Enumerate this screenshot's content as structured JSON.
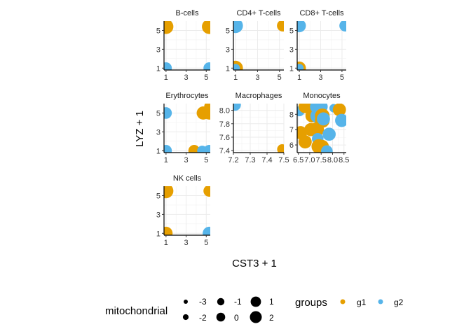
{
  "chart_data": {
    "type": "scatter",
    "xlabel": "CST3 + 1",
    "ylabel": "LYZ + 1",
    "grid": true,
    "colors": {
      "g1": "#E69F00",
      "g2": "#56B4E9"
    },
    "size_legend": {
      "title": "mitochondrial",
      "entries": [
        {
          "label": "-3",
          "value": -3
        },
        {
          "label": "-2",
          "value": -2
        },
        {
          "label": "-1",
          "value": -1
        },
        {
          "label": "0",
          "value": 0
        },
        {
          "label": "1",
          "value": 1
        },
        {
          "label": "2",
          "value": 2
        }
      ]
    },
    "color_legend": {
      "title": "groups",
      "entries": [
        {
          "label": "g1",
          "group": "g1"
        },
        {
          "label": "g2",
          "group": "g2"
        }
      ]
    },
    "panels": [
      {
        "title": "B-cells",
        "xlim": [
          0.8,
          5.4
        ],
        "ylim": [
          0.8,
          6.0
        ],
        "xticks": [
          {
            "v": 1,
            "l": "1"
          },
          {
            "v": 3,
            "l": "3"
          },
          {
            "v": 5,
            "l": "5"
          }
        ],
        "yticks": [
          {
            "v": 1,
            "l": "1"
          },
          {
            "v": 3,
            "l": "3"
          },
          {
            "v": 5,
            "l": "5"
          }
        ],
        "points": [
          {
            "x": 1,
            "y": 5.7,
            "group": "g2",
            "size": 0
          },
          {
            "x": 1,
            "y": 5.4,
            "group": "g1",
            "size": 2
          },
          {
            "x": 5.3,
            "y": 5.4,
            "group": "g1",
            "size": 2
          },
          {
            "x": 1,
            "y": 1,
            "group": "g2",
            "size": 0
          },
          {
            "x": 5.3,
            "y": 1,
            "group": "g2",
            "size": 0
          }
        ]
      },
      {
        "title": "CD4+ T-cells",
        "xlim": [
          0.8,
          5.4
        ],
        "ylim": [
          0.8,
          6.0
        ],
        "xticks": [
          {
            "v": 1,
            "l": "1"
          },
          {
            "v": 3,
            "l": "3"
          },
          {
            "v": 5,
            "l": "5"
          }
        ],
        "yticks": [
          {
            "v": 1,
            "l": "1"
          },
          {
            "v": 3,
            "l": "3"
          },
          {
            "v": 5,
            "l": "5"
          }
        ],
        "points": [
          {
            "x": 1,
            "y": 5.5,
            "group": "g2",
            "size": 2
          },
          {
            "x": 5.3,
            "y": 5.5,
            "group": "g1",
            "size": 0
          },
          {
            "x": 1,
            "y": 1,
            "group": "g1",
            "size": 2
          },
          {
            "x": 1,
            "y": 1,
            "group": "g2",
            "size": -2
          }
        ]
      },
      {
        "title": "CD8+ T-cells",
        "xlim": [
          0.8,
          5.4
        ],
        "ylim": [
          0.8,
          6.0
        ],
        "xticks": [
          {
            "v": 1,
            "l": "1"
          },
          {
            "v": 3,
            "l": "3"
          },
          {
            "v": 5,
            "l": "5"
          }
        ],
        "yticks": [
          {
            "v": 1,
            "l": "1"
          },
          {
            "v": 3,
            "l": "3"
          },
          {
            "v": 5,
            "l": "5"
          }
        ],
        "points": [
          {
            "x": 1,
            "y": 5.5,
            "group": "g2",
            "size": 1
          },
          {
            "x": 5.3,
            "y": 5.5,
            "group": "g2",
            "size": 0
          },
          {
            "x": 1,
            "y": 1,
            "group": "g1",
            "size": 1
          },
          {
            "x": 1,
            "y": 1,
            "group": "g2",
            "size": -2
          }
        ]
      },
      {
        "title": "Erythrocytes",
        "xlim": [
          0.8,
          5.4
        ],
        "ylim": [
          0.8,
          6.0
        ],
        "xticks": [
          {
            "v": 1,
            "l": "1"
          },
          {
            "v": 3,
            "l": "3"
          },
          {
            "v": 5,
            "l": "5"
          }
        ],
        "yticks": [
          {
            "v": 1,
            "l": "1"
          },
          {
            "v": 3,
            "l": "3"
          },
          {
            "v": 5,
            "l": "5"
          }
        ],
        "points": [
          {
            "x": 1,
            "y": 5,
            "group": "g2",
            "size": 0
          },
          {
            "x": 5.3,
            "y": 5.7,
            "group": "g1",
            "size": -1
          },
          {
            "x": 4.7,
            "y": 5,
            "group": "g1",
            "size": 1
          },
          {
            "x": 5.3,
            "y": 5,
            "group": "g1",
            "size": 1
          },
          {
            "x": 1,
            "y": 1,
            "group": "g2",
            "size": 0
          },
          {
            "x": 3.8,
            "y": 1,
            "group": "g1",
            "size": 0
          },
          {
            "x": 4.6,
            "y": 1,
            "group": "g2",
            "size": -1
          },
          {
            "x": 5.3,
            "y": 1,
            "group": "g2",
            "size": 0
          }
        ]
      },
      {
        "title": "Macrophages",
        "xlim": [
          7.2,
          7.5
        ],
        "ylim": [
          7.37,
          8.1
        ],
        "xticks": [
          {
            "v": 7.2,
            "l": "7.2"
          },
          {
            "v": 7.3,
            "l": "7.3"
          },
          {
            "v": 7.4,
            "l": "7.4"
          },
          {
            "v": 7.5,
            "l": "7.5"
          }
        ],
        "yticks": [
          {
            "v": 7.4,
            "l": "7.4"
          },
          {
            "v": 7.6,
            "l": "7.6"
          },
          {
            "v": 7.8,
            "l": "7.8"
          },
          {
            "v": 8.0,
            "l": "8.0"
          }
        ],
        "points": [
          {
            "x": 7.21,
            "y": 8.08,
            "group": "g2",
            "size": 0
          },
          {
            "x": 7.49,
            "y": 7.42,
            "group": "g1",
            "size": -1
          }
        ]
      },
      {
        "title": "Monocytes",
        "xlim": [
          6.45,
          8.6
        ],
        "ylim": [
          5.5,
          8.7
        ],
        "xticks": [
          {
            "v": 6.5,
            "l": "6.5"
          },
          {
            "v": 7.0,
            "l": "7.0"
          },
          {
            "v": 7.5,
            "l": "7.5"
          },
          {
            "v": 8.0,
            "l": "8.0"
          },
          {
            "v": 8.5,
            "l": "8.5"
          }
        ],
        "yticks": [
          {
            "v": 6,
            "l": "6"
          },
          {
            "v": 7,
            "l": "7"
          },
          {
            "v": 8,
            "l": "8"
          }
        ],
        "points": [
          {
            "x": 6.55,
            "y": 8.2,
            "group": "g2",
            "size": -1
          },
          {
            "x": 6.6,
            "y": 6.8,
            "group": "g1",
            "size": 1
          },
          {
            "x": 6.8,
            "y": 8.5,
            "group": "g1",
            "size": 1
          },
          {
            "x": 6.8,
            "y": 6.2,
            "group": "g1",
            "size": 1
          },
          {
            "x": 7.05,
            "y": 8.5,
            "group": "g1",
            "size": 1
          },
          {
            "x": 7.1,
            "y": 7.9,
            "group": "g1",
            "size": 1
          },
          {
            "x": 7.05,
            "y": 7.0,
            "group": "g1",
            "size": 1
          },
          {
            "x": 7.3,
            "y": 8.5,
            "group": "g2",
            "size": 1
          },
          {
            "x": 7.35,
            "y": 7.9,
            "group": "g2",
            "size": 2
          },
          {
            "x": 7.3,
            "y": 7.0,
            "group": "g1",
            "size": 2
          },
          {
            "x": 7.35,
            "y": 6.4,
            "group": "g2",
            "size": 0
          },
          {
            "x": 7.4,
            "y": 5.9,
            "group": "g1",
            "size": 2
          },
          {
            "x": 7.5,
            "y": 8.5,
            "group": "g2",
            "size": 1
          },
          {
            "x": 7.55,
            "y": 7.9,
            "group": "g1",
            "size": 2
          },
          {
            "x": 7.55,
            "y": 7.6,
            "group": "g1",
            "size": 2
          },
          {
            "x": 7.55,
            "y": 5.9,
            "group": "g1",
            "size": 1
          },
          {
            "x": 7.6,
            "y": 7.7,
            "group": "g2",
            "size": 1
          },
          {
            "x": 7.75,
            "y": 5.6,
            "group": "g2",
            "size": 0
          },
          {
            "x": 7.85,
            "y": 6.7,
            "group": "g2",
            "size": 1
          },
          {
            "x": 8.05,
            "y": 8.4,
            "group": "g2",
            "size": -2
          },
          {
            "x": 8.3,
            "y": 8.3,
            "group": "g1",
            "size": 1
          },
          {
            "x": 8.4,
            "y": 7.6,
            "group": "g2",
            "size": 1
          }
        ]
      },
      {
        "title": "NK cells",
        "xlim": [
          0.8,
          5.4
        ],
        "ylim": [
          0.8,
          6.0
        ],
        "xticks": [
          {
            "v": 1,
            "l": "1"
          },
          {
            "v": 3,
            "l": "3"
          },
          {
            "v": 5,
            "l": "5"
          }
        ],
        "yticks": [
          {
            "v": 1,
            "l": "1"
          },
          {
            "v": 3,
            "l": "3"
          },
          {
            "v": 5,
            "l": "5"
          }
        ],
        "points": [
          {
            "x": 1,
            "y": 5.5,
            "group": "g1",
            "size": 2
          },
          {
            "x": 5.3,
            "y": 5.5,
            "group": "g1",
            "size": 0
          },
          {
            "x": 1,
            "y": 1,
            "group": "g1",
            "size": 1
          },
          {
            "x": 5.3,
            "y": 1,
            "group": "g2",
            "size": 1
          }
        ]
      }
    ]
  }
}
